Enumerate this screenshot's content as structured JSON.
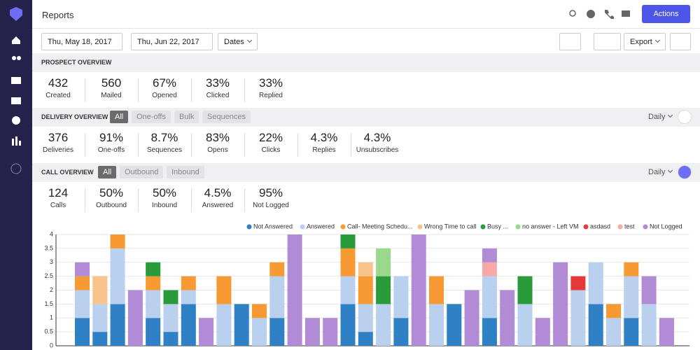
{
  "header": {
    "title": "Reports",
    "actions": "Actions"
  },
  "toolbar": {
    "start_date": "Thu, May 18, 2017",
    "end_date": "Thu, Jun 22, 2017",
    "dates": "Dates",
    "export": "Export"
  },
  "prospect_overview": {
    "title": "PROSPECT OVERVIEW",
    "stats": [
      {
        "value": "432",
        "label": "Created"
      },
      {
        "value": "560",
        "label": "Mailed"
      },
      {
        "value": "67%",
        "label": "Opened"
      },
      {
        "value": "33%",
        "label": "Clicked"
      },
      {
        "value": "33%",
        "label": "Replied"
      }
    ]
  },
  "delivery_overview": {
    "title": "DELIVERY OVERVIEW",
    "tabs": [
      "All",
      "One-offs",
      "Bulk",
      "Sequences"
    ],
    "period": "Daily",
    "stats": [
      {
        "value": "376",
        "label": "Deliveries"
      },
      {
        "value": "91%",
        "label": "One-offs"
      },
      {
        "value": "8.7%",
        "label": "Sequences"
      },
      {
        "value": "83%",
        "label": "Opens"
      },
      {
        "value": "22%",
        "label": "Clicks"
      },
      {
        "value": "4.3%",
        "label": "Replies"
      },
      {
        "value": "4.3%",
        "label": "Unsubscribes"
      }
    ]
  },
  "call_overview": {
    "title": "CALL OVERVIEW",
    "tabs": [
      "All",
      "Outbound",
      "Inbound"
    ],
    "period": "Daily",
    "stats": [
      {
        "value": "124",
        "label": "Calls"
      },
      {
        "value": "50%",
        "label": "Outbound"
      },
      {
        "value": "50%",
        "label": "Inbound"
      },
      {
        "value": "4.5%",
        "label": "Answered"
      },
      {
        "value": "95%",
        "label": "Not Logged"
      }
    ]
  },
  "chart_data": {
    "type": "bar",
    "stacked": true,
    "categories": [
      null,
      null,
      null,
      null,
      null,
      null,
      null,
      null,
      null,
      null,
      null,
      null,
      null,
      null,
      null,
      null,
      null,
      null,
      null,
      null,
      null,
      null,
      null,
      null,
      null,
      null,
      null,
      null,
      null,
      null,
      null,
      null,
      null,
      null
    ],
    "series": [
      {
        "name": "Not Answered",
        "color": "#2f80c4",
        "values": [
          1,
          0.5,
          1.5,
          null,
          1,
          0.5,
          1.5,
          null,
          null,
          1.5,
          null,
          1,
          null,
          null,
          null,
          1.5,
          0.5,
          null,
          1,
          null,
          null,
          1.5,
          null,
          1,
          null,
          null,
          null,
          null,
          null,
          1.5,
          null,
          1,
          null,
          null
        ]
      },
      {
        "name": "Answered",
        "color": "#b9d1ef",
        "values": [
          1,
          1,
          2,
          null,
          1,
          1,
          0.5,
          null,
          1.5,
          null,
          1,
          1.5,
          null,
          null,
          null,
          1,
          1,
          1.5,
          1.5,
          null,
          1.5,
          null,
          null,
          1.5,
          null,
          1.5,
          null,
          null,
          2,
          1.5,
          1,
          1.5,
          1.5,
          null
        ]
      },
      {
        "name": "Call- Meeting Schedu...",
        "color": "#f89a33",
        "values": [
          0.5,
          null,
          0.5,
          null,
          0.5,
          null,
          0.5,
          null,
          1,
          null,
          0.5,
          0.5,
          null,
          null,
          null,
          1,
          1,
          null,
          null,
          null,
          1,
          null,
          null,
          null,
          null,
          null,
          null,
          null,
          null,
          null,
          0.5,
          0.5,
          null,
          null
        ]
      },
      {
        "name": "Wrong Time to call",
        "color": "#f9c48b",
        "values": [
          null,
          1,
          null,
          null,
          null,
          null,
          null,
          null,
          null,
          null,
          null,
          null,
          null,
          null,
          null,
          null,
          0.5,
          null,
          null,
          null,
          null,
          null,
          null,
          null,
          null,
          null,
          null,
          null,
          null,
          null,
          null,
          null,
          null,
          null
        ]
      },
      {
        "name": "Busy ...",
        "color": "#2a9b3b",
        "values": [
          null,
          null,
          null,
          null,
          0.5,
          0.5,
          null,
          null,
          null,
          null,
          null,
          null,
          null,
          null,
          null,
          0.5,
          null,
          1,
          null,
          null,
          null,
          null,
          null,
          null,
          null,
          1,
          null,
          null,
          null,
          null,
          null,
          null,
          null,
          null
        ]
      },
      {
        "name": "no answer - Left VM",
        "color": "#9ad98d",
        "values": [
          null,
          null,
          null,
          null,
          null,
          null,
          null,
          null,
          null,
          null,
          null,
          null,
          null,
          null,
          null,
          null,
          null,
          1,
          null,
          null,
          null,
          null,
          null,
          null,
          null,
          null,
          null,
          null,
          null,
          null,
          null,
          null,
          null,
          null
        ]
      },
      {
        "name": "asdasd",
        "color": "#e8393a",
        "values": [
          null,
          null,
          null,
          null,
          null,
          null,
          null,
          null,
          null,
          null,
          null,
          null,
          null,
          null,
          null,
          null,
          null,
          null,
          null,
          null,
          null,
          null,
          null,
          null,
          null,
          null,
          null,
          null,
          0.5,
          null,
          null,
          null,
          null,
          null
        ]
      },
      {
        "name": "test",
        "color": "#f7a9a8",
        "values": [
          null,
          null,
          null,
          null,
          null,
          null,
          null,
          null,
          null,
          null,
          null,
          null,
          null,
          null,
          null,
          null,
          null,
          null,
          null,
          null,
          null,
          null,
          null,
          0.5,
          null,
          null,
          null,
          null,
          null,
          null,
          null,
          null,
          null,
          null
        ]
      },
      {
        "name": "Not Logged",
        "color": "#b28bd6",
        "values": [
          0.5,
          null,
          null,
          2,
          null,
          null,
          null,
          1,
          null,
          null,
          null,
          null,
          4,
          1,
          1,
          null,
          null,
          null,
          null,
          4,
          null,
          null,
          2,
          0.5,
          2,
          null,
          1,
          3,
          null,
          null,
          null,
          null,
          1,
          1
        ]
      }
    ],
    "ylim": [
      0,
      4
    ],
    "yticks": [
      0,
      0.5,
      1,
      1.5,
      2,
      2.5,
      3,
      3.5,
      4
    ],
    "grid": true
  }
}
